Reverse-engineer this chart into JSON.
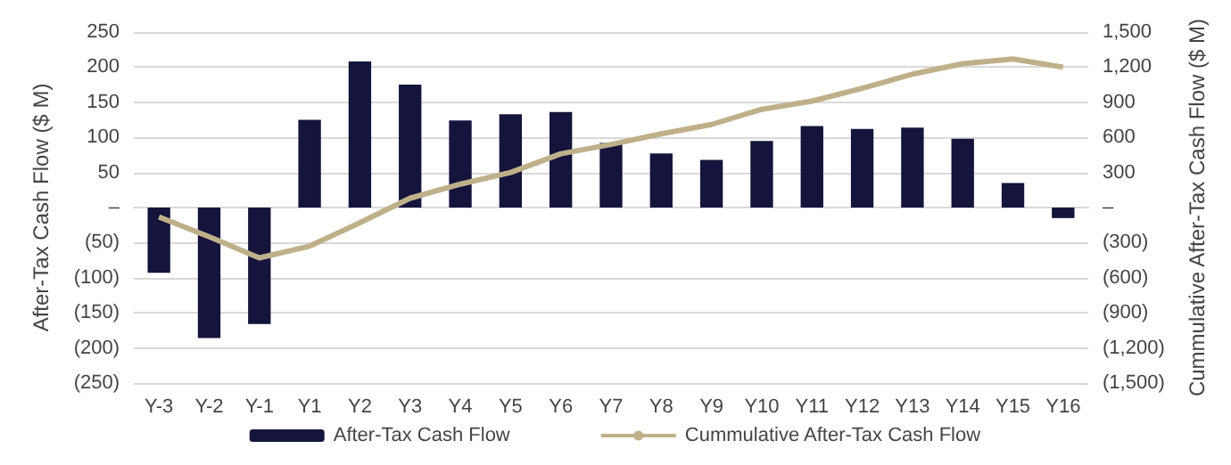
{
  "chart_data": {
    "type": "bar",
    "ylabel": "After-Tax Cash Flow ($ M)",
    "y2label": "Cummulative After-Tax Cash Flow ($ M)",
    "categories": [
      "Y-3",
      "Y-2",
      "Y-1",
      "Y1",
      "Y2",
      "Y3",
      "Y4",
      "Y5",
      "Y6",
      "Y7",
      "Y8",
      "Y9",
      "Y10",
      "Y11",
      "Y12",
      "Y13",
      "Y14",
      "Y15",
      "Y16"
    ],
    "series": [
      {
        "name": "After-Tax Cash Flow",
        "color": "#14143c",
        "values": [
          -93,
          -186,
          -166,
          125,
          208,
          175,
          124,
          133,
          136,
          92,
          77,
          68,
          95,
          116,
          112,
          114,
          98,
          35,
          -15
        ]
      },
      {
        "name": "Cummulative After-Tax Cash Flow",
        "type": "line",
        "axis": "y2",
        "color": "#bfb08a",
        "marker": "none",
        "values": [
          -80,
          -250,
          -430,
          -330,
          -130,
          80,
          200,
          300,
          460,
          540,
          630,
          710,
          840,
          910,
          1020,
          1140,
          1230,
          1270,
          1200
        ]
      }
    ],
    "ylim": [
      -250,
      250
    ],
    "yticks": [
      {
        "value": -250,
        "label": "(250)"
      },
      {
        "value": -200,
        "label": "(200)"
      },
      {
        "value": -150,
        "label": "(150)"
      },
      {
        "value": -100,
        "label": "(100)"
      },
      {
        "value": -50,
        "label": "(50)"
      },
      {
        "value": 0,
        "label": "–"
      },
      {
        "value": 50,
        "label": "50"
      },
      {
        "value": 100,
        "label": "100"
      },
      {
        "value": 150,
        "label": "150"
      },
      {
        "value": 200,
        "label": "200"
      },
      {
        "value": 250,
        "label": "250"
      }
    ],
    "y2lim": [
      -1500,
      1500
    ],
    "y2ticks": [
      {
        "value": -1500,
        "label": "(1,500)"
      },
      {
        "value": -1200,
        "label": "(1,200)"
      },
      {
        "value": -900,
        "label": "(900)"
      },
      {
        "value": -600,
        "label": "(600)"
      },
      {
        "value": -300,
        "label": "(300)"
      },
      {
        "value": 0,
        "label": "–"
      },
      {
        "value": 300,
        "label": "300"
      },
      {
        "value": 600,
        "label": "600"
      },
      {
        "value": 900,
        "label": "900"
      },
      {
        "value": 1200,
        "label": "1,200"
      },
      {
        "value": 1500,
        "label": "1,500"
      }
    ],
    "grid": "y",
    "legend": "bottom"
  }
}
